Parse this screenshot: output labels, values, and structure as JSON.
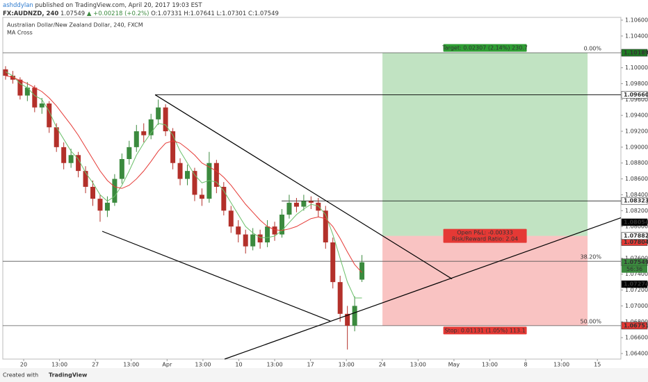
{
  "header": {
    "user": "ashddylan",
    "published": "published on TradingView.com, April 20, 2017 19:03 EST",
    "symbol": "FX:AUDNZD, 240",
    "last": "1.07549",
    "change": "▲ +0.00218 (+0.2%)",
    "ohlc": "O:1.07331 H:1.07641 L:1.07301 C:1.07549"
  },
  "footer": {
    "created": "Created with",
    "brand": "TradingView"
  },
  "chart_data": {
    "type": "candlestick",
    "title": "Australian Dollar/New Zealand Dollar, 240, FXCM",
    "indicator": "MA Cross",
    "up_color": "#3b8a3e",
    "down_color": "#b3302a",
    "xlim": [
      -0.38,
      84.6
    ],
    "ylim": [
      1.0633,
      1.10635
    ],
    "grid": false,
    "xticks": [
      {
        "value": 2.49,
        "label": "20"
      },
      {
        "value": 7.42,
        "label": "13:00"
      },
      {
        "value": 12.35,
        "label": "27"
      },
      {
        "value": 17.28,
        "label": "13:00"
      },
      {
        "value": 22.21,
        "label": "Apr"
      },
      {
        "value": 27.14,
        "label": "13:00"
      },
      {
        "value": 32.07,
        "label": "10"
      },
      {
        "value": 37.0,
        "label": "13:00"
      },
      {
        "value": 41.93,
        "label": "17"
      },
      {
        "value": 46.86,
        "label": "13:00"
      },
      {
        "value": 51.79,
        "label": "24"
      },
      {
        "value": 56.72,
        "label": "13:00"
      },
      {
        "value": 61.65,
        "label": "May"
      },
      {
        "value": 66.58,
        "label": "13:00"
      },
      {
        "value": 71.51,
        "label": "8"
      },
      {
        "value": 76.44,
        "label": "13:00"
      },
      {
        "value": 81.37,
        "label": "15"
      }
    ],
    "yticks": [
      {
        "value": 1.064,
        "label": "1.06400"
      },
      {
        "value": 1.066,
        "label": "1.06600"
      },
      {
        "value": 1.068,
        "label": "1.06800"
      },
      {
        "value": 1.07,
        "label": "1.07000"
      },
      {
        "value": 1.072,
        "label": "1.07200"
      },
      {
        "value": 1.074,
        "label": "1.07400"
      },
      {
        "value": 1.076,
        "label": "1.07600"
      },
      {
        "value": 1.078,
        "label": "1.07800"
      },
      {
        "value": 1.08,
        "label": "1.08000"
      },
      {
        "value": 1.082,
        "label": "1.08200"
      },
      {
        "value": 1.084,
        "label": "1.08400"
      },
      {
        "value": 1.086,
        "label": "1.08600"
      },
      {
        "value": 1.088,
        "label": "1.08800"
      },
      {
        "value": 1.09,
        "label": "1.09000"
      },
      {
        "value": 1.092,
        "label": "1.09200"
      },
      {
        "value": 1.094,
        "label": "1.09400"
      },
      {
        "value": 1.096,
        "label": "1.09600"
      },
      {
        "value": 1.098,
        "label": "1.09800"
      },
      {
        "value": 1.1,
        "label": "1.10000"
      },
      {
        "value": 1.102,
        "label": "1.10200"
      },
      {
        "value": 1.104,
        "label": "1.10400"
      },
      {
        "value": 1.106,
        "label": "1.10600"
      }
    ],
    "candles": [
      [
        1.0998,
        1.1002,
        1.0985,
        1.099
      ],
      [
        1.099,
        1.0996,
        1.098,
        1.0985
      ],
      [
        1.0985,
        1.0988,
        1.096,
        1.0965
      ],
      [
        1.0965,
        1.0982,
        1.0958,
        1.0975
      ],
      [
        1.0975,
        1.0978,
        1.0944,
        1.095
      ],
      [
        1.095,
        1.0962,
        1.0942,
        1.0955
      ],
      [
        1.0955,
        1.0958,
        1.0918,
        1.0925
      ],
      [
        1.0925,
        1.093,
        1.0894,
        1.09
      ],
      [
        1.09,
        1.0906,
        1.0872,
        1.088
      ],
      [
        1.088,
        1.0898,
        1.0874,
        1.089
      ],
      [
        1.089,
        1.0894,
        1.0862,
        1.087
      ],
      [
        1.087,
        1.0876,
        1.0842,
        1.085
      ],
      [
        1.085,
        1.0858,
        1.0826,
        1.0835
      ],
      [
        1.0835,
        1.084,
        1.0806,
        1.082
      ],
      [
        1.082,
        1.0838,
        1.0812,
        1.083
      ],
      [
        1.083,
        1.0866,
        1.0826,
        1.086
      ],
      [
        1.086,
        1.0892,
        1.0854,
        1.0885
      ],
      [
        1.0885,
        1.0908,
        1.0878,
        1.09
      ],
      [
        1.09,
        1.0928,
        1.0894,
        1.092
      ],
      [
        1.092,
        1.093,
        1.0906,
        1.0915
      ],
      [
        1.0915,
        1.0942,
        1.091,
        1.0935
      ],
      [
        1.0935,
        1.096,
        1.0928,
        1.095
      ],
      [
        1.095,
        1.0954,
        1.0914,
        1.092
      ],
      [
        1.092,
        1.0924,
        1.0872,
        1.088
      ],
      [
        1.088,
        1.0886,
        1.0852,
        1.086
      ],
      [
        1.086,
        1.0878,
        1.0852,
        1.087
      ],
      [
        1.087,
        1.0874,
        1.0832,
        1.084
      ],
      [
        1.084,
        1.0848,
        1.0826,
        1.0835
      ],
      [
        1.0835,
        1.0894,
        1.083,
        1.088
      ],
      [
        1.088,
        1.0884,
        1.0842,
        1.085
      ],
      [
        1.085,
        1.0856,
        1.0814,
        1.082
      ],
      [
        1.082,
        1.0826,
        1.0792,
        1.08
      ],
      [
        1.08,
        1.0808,
        1.078,
        1.079
      ],
      [
        1.079,
        1.0796,
        1.0766,
        1.0775
      ],
      [
        1.0775,
        1.0798,
        1.077,
        1.079
      ],
      [
        1.079,
        1.0796,
        1.0772,
        1.078
      ],
      [
        1.078,
        1.0808,
        1.0774,
        1.08
      ],
      [
        1.08,
        1.0806,
        1.0782,
        1.079
      ],
      [
        1.079,
        1.0822,
        1.0786,
        1.0815
      ],
      [
        1.0815,
        1.084,
        1.081,
        1.083
      ],
      [
        1.083,
        1.0836,
        1.0818,
        1.0825
      ],
      [
        1.0825,
        1.084,
        1.082,
        1.0832
      ],
      [
        1.0832,
        1.0838,
        1.0822,
        1.083
      ],
      [
        1.083,
        1.0836,
        1.0812,
        1.082
      ],
      [
        1.082,
        1.0826,
        1.0772,
        1.078
      ],
      [
        1.078,
        1.0786,
        1.0722,
        1.073
      ],
      [
        1.073,
        1.0738,
        1.068,
        1.069
      ],
      [
        1.069,
        1.07,
        1.0645,
        1.0675
      ],
      [
        1.0675,
        1.0712,
        1.0668,
        1.07
      ],
      [
        1.07331,
        1.07641,
        1.07301,
        1.07549
      ]
    ],
    "series": [
      {
        "color": "#6abf69",
        "values": [
          1.0995,
          1.099,
          1.098,
          1.0975,
          1.0965,
          1.096,
          1.0945,
          1.0925,
          1.091,
          1.0895,
          1.0885,
          1.0868,
          1.0855,
          1.084,
          1.0832,
          1.0838,
          1.0852,
          1.087,
          1.089,
          1.0905,
          1.0918,
          1.093,
          1.0928,
          1.0915,
          1.0895,
          1.088,
          1.0865,
          1.0855,
          1.0858,
          1.0856,
          1.0845,
          1.083,
          1.0815,
          1.08,
          1.0792,
          1.0786,
          1.0786,
          1.0788,
          1.0795,
          1.0805,
          1.0815,
          1.0822,
          1.0828,
          1.0826,
          1.0815,
          1.079,
          1.076,
          1.073,
          1.071,
          1.071
        ]
      },
      {
        "color": "#e53935",
        "values": [
          1.099,
          1.0988,
          1.0984,
          1.098,
          1.0975,
          1.097,
          1.0962,
          1.0952,
          1.094,
          1.0928,
          1.0915,
          1.09,
          1.0885,
          1.087,
          1.0858,
          1.085,
          1.0848,
          1.0852,
          1.086,
          1.087,
          1.0882,
          1.0895,
          1.0905,
          1.0908,
          1.0905,
          1.0898,
          1.089,
          1.088,
          1.0875,
          1.087,
          1.0862,
          1.0852,
          1.084,
          1.0828,
          1.0818,
          1.0808,
          1.08,
          1.0796,
          1.0795,
          1.0797,
          1.08,
          1.0805,
          1.081,
          1.0812,
          1.081,
          1.08,
          1.0785,
          1.0768,
          1.0752,
          1.0742
        ]
      }
    ],
    "trendlines": [
      {
        "x": [
          20.56,
          61.38
        ],
        "y": [
          1.0966,
          1.0734
        ]
      },
      {
        "x": [
          13.29,
          44.65
        ],
        "y": [
          1.0794,
          1.0681
        ]
      },
      {
        "x": [
          30.12,
          84.6
        ],
        "y": [
          1.0633,
          1.0811
        ]
      }
    ],
    "hlines": [
      {
        "x": 20.56,
        "price": 1.0966
      },
      {
        "x": 37.96,
        "price": 1.08323
      }
    ],
    "fib_levels": [
      {
        "price": 1.10189,
        "label": "0.00%"
      },
      {
        "price": 1.07562,
        "label": "38.20%"
      },
      {
        "price": 1.06751,
        "label": "50.00%"
      }
    ],
    "position": {
      "x": [
        51.82,
        80.02
      ],
      "entry": 1.07882,
      "target": 1.10189,
      "stop": 1.06751,
      "target_label": "Target: 0.02307 (2.14%) 230.7",
      "pnl_label": "Open P&L: -0.00333",
      "rr_label": "Risk/Reward Ratio: 2.04",
      "stop_label": "Stop: 0.01131 (1.05%) 113.1"
    },
    "price_labels": [
      {
        "value": 1.10189,
        "label": "1.10189",
        "bg": "#1e7d22",
        "fg": "#ffffff"
      },
      {
        "value": 1.0966,
        "label": "1.09660",
        "bg": "#ffffff",
        "fg": "#000000"
      },
      {
        "value": 1.08054,
        "label": "1.08054",
        "bg": "#000000",
        "fg": "#ffffff"
      },
      {
        "value": 1.07804,
        "label": "1.07804",
        "bg": "#e53935",
        "fg": "#ffffff"
      },
      {
        "value": 1.08323,
        "label": "1.08323",
        "bg": "#ffffff",
        "fg": "#000000"
      },
      {
        "value": 1.07882,
        "label": "1.07882",
        "bg": "#ffffff",
        "fg": "#000000"
      },
      {
        "value": 1.07549,
        "label": "1.07549",
        "bg": "#3b8a3e",
        "fg": "#ffffff"
      },
      {
        "value": 1.07274,
        "label": "1.07274",
        "bg": "#000000",
        "fg": "#ffffff"
      },
      {
        "value": 1.06751,
        "label": "1.06751",
        "bg": "#e53935",
        "fg": "#ffffff"
      }
    ],
    "countdown": "56:36"
  }
}
